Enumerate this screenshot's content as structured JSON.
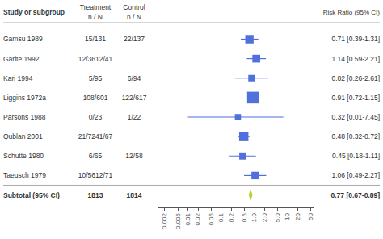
{
  "chart_data": {
    "type": "forest",
    "headers": {
      "study": "Study or subgroup",
      "treatment": [
        "Treatment",
        "n / N"
      ],
      "control": [
        "Control",
        "n / N"
      ],
      "effect": "Risk Ratio (95% CI)"
    },
    "categories": [
      "Gamsu 1989",
      "Garite 1992",
      "Kari 1994",
      "Liggins 1972a",
      "Parsons 1988",
      "Qublan 2001",
      "Schutte 1980",
      "Taeusch 1979"
    ],
    "treatment": [
      "15/131",
      "12/3612/41",
      "5/95",
      "108/601",
      "0/23",
      "21/7241/67",
      "6/65",
      "10/5612/71"
    ],
    "control": [
      "22/137",
      null,
      "6/94",
      "122/617",
      "1/22",
      null,
      "12/58",
      null
    ],
    "values": [
      0.71,
      1.14,
      0.82,
      0.91,
      0.32,
      0.48,
      0.45,
      1.06
    ],
    "ci_low": [
      0.39,
      0.59,
      0.26,
      0.72,
      0.01,
      0.32,
      0.18,
      0.49
    ],
    "ci_high": [
      1.31,
      2.21,
      2.61,
      1.15,
      7.45,
      0.72,
      1.11,
      2.27
    ],
    "weights": [
      2.5,
      2.0,
      1.0,
      7.0,
      0.8,
      3.5,
      1.5,
      1.8
    ],
    "value_labels": [
      "0.71 [0.39-1.31]",
      "1.14 [0.59-2.21]",
      "0.82 [0.26-2.61]",
      "0.91 [0.72-1.15]",
      "0.32 [0.01-7.45]",
      "0.48 [0.32-0.72]",
      "0.45 [0.18-1.11]",
      "1.06 [0.49-2.27]"
    ],
    "subtotal": {
      "label": "Subtotal (95% CI)",
      "treatment": "1813",
      "control": "1814",
      "value": 0.77,
      "ci_low": 0.67,
      "ci_high": 0.89,
      "value_label": "0.77 [0.67-0.89]"
    },
    "log": "x",
    "xlim": [
      0.0013,
      60
    ],
    "xticks": [
      0.002,
      0.005,
      0.01,
      0.02,
      0.05,
      0.1,
      0.2,
      0.5,
      {
        "value": 1.0,
        "label": "1.0"
      },
      {
        "value": 2.0,
        "label": "2.0"
      },
      {
        "value": 5.0,
        "label": "5.0"
      },
      10,
      20,
      50
    ],
    "grid": false
  }
}
